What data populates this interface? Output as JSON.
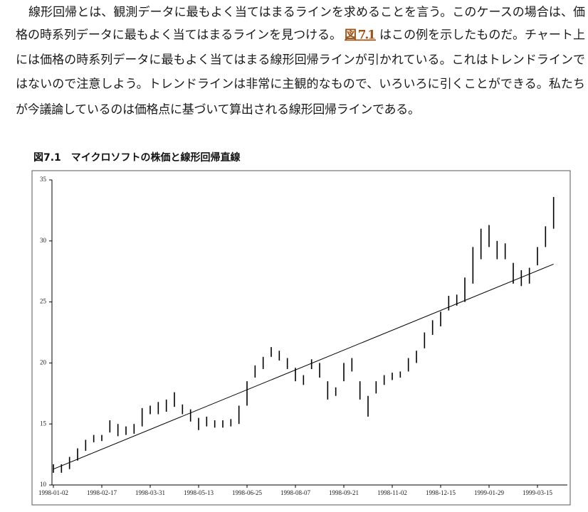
{
  "paragraph": [
    {
      "text": "線形回帰とは、観測データに最もよく当てはまるラインを求めることを言う。このケースの場合は、価"
    },
    {
      "text": "格の時系列データに最もよく当てはまるラインを見つける。",
      "link": "図 7.1",
      "after": "はこの例を示したものだ。チャート上"
    },
    {
      "text": "には価格の時系列データに最もよく当てはまる線形回帰ラインが引かれている。これはトレンドラインで"
    },
    {
      "text": "はないので注意しよう。トレンドラインは非常に主観的なもので、いろいろに引くことができる。私たち"
    },
    {
      "text": "が今議論しているのは価格点に基づいて算出される線形回帰ラインである。"
    }
  ],
  "figure_caption": "図7.1　マイクロソフトの株価と線形回帰直線",
  "chart_data": {
    "type": "hilo",
    "color": "#000000",
    "categories": [
      "1998-01-02",
      null,
      null,
      null,
      null,
      null,
      "1998-02-17",
      null,
      null,
      null,
      null,
      null,
      "1998-03-31",
      null,
      null,
      null,
      null,
      null,
      "1998-05-13",
      null,
      null,
      null,
      null,
      null,
      "1998-06-25",
      null,
      null,
      null,
      null,
      null,
      "1998-08-07",
      null,
      null,
      null,
      null,
      null,
      "1998-09-21",
      null,
      null,
      null,
      null,
      null,
      "1998-11-02",
      null,
      null,
      null,
      null,
      null,
      "1998-12-15",
      null,
      null,
      null,
      null,
      null,
      "1999-01-29",
      null,
      null,
      null,
      null,
      null,
      "1999-03-15",
      null,
      null
    ],
    "high": [
      11.7,
      11.7,
      12.3,
      13.0,
      13.7,
      14.1,
      14.1,
      15.3,
      15.0,
      14.8,
      15.0,
      16.3,
      16.5,
      16.8,
      17.0,
      17.6,
      16.6,
      16.2,
      15.5,
      15.6,
      15.3,
      15.3,
      15.4,
      16.5,
      18.5,
      19.8,
      20.5,
      21.3,
      21.0,
      20.4,
      19.6,
      19.0,
      20.3,
      20.0,
      18.5,
      18.0,
      20.0,
      20.4,
      18.5,
      17.3,
      18.5,
      19.0,
      19.2,
      19.3,
      20.4,
      21.0,
      22.5,
      23.5,
      24.2,
      25.5,
      25.6,
      27.0,
      29.5,
      31.0,
      31.3,
      30.0,
      29.8,
      28.2,
      27.6,
      27.8,
      29.5,
      31.2,
      33.6
    ],
    "low": [
      11.0,
      11.0,
      11.3,
      12.0,
      12.8,
      13.5,
      13.6,
      14.3,
      14.0,
      14.1,
      14.2,
      14.8,
      15.8,
      15.8,
      16.0,
      16.4,
      15.8,
      15.2,
      14.5,
      14.8,
      14.7,
      14.7,
      14.8,
      15.0,
      16.5,
      18.8,
      19.5,
      20.5,
      20.2,
      19.5,
      18.5,
      18.2,
      19.5,
      18.8,
      17.0,
      17.3,
      18.5,
      19.3,
      17.0,
      15.6,
      17.5,
      18.2,
      18.6,
      18.8,
      19.3,
      20.0,
      21.2,
      22.3,
      23.0,
      24.3,
      24.7,
      25.0,
      26.5,
      28.5,
      29.5,
      28.5,
      28.5,
      26.5,
      26.3,
      26.5,
      28.0,
      29.5,
      31.0
    ],
    "trend_line": {
      "values": [
        11.3,
        28.1
      ],
      "color": "#000000"
    },
    "ylim": [
      10,
      35
    ],
    "yticks": [
      10,
      15,
      20,
      25,
      30,
      35
    ]
  }
}
